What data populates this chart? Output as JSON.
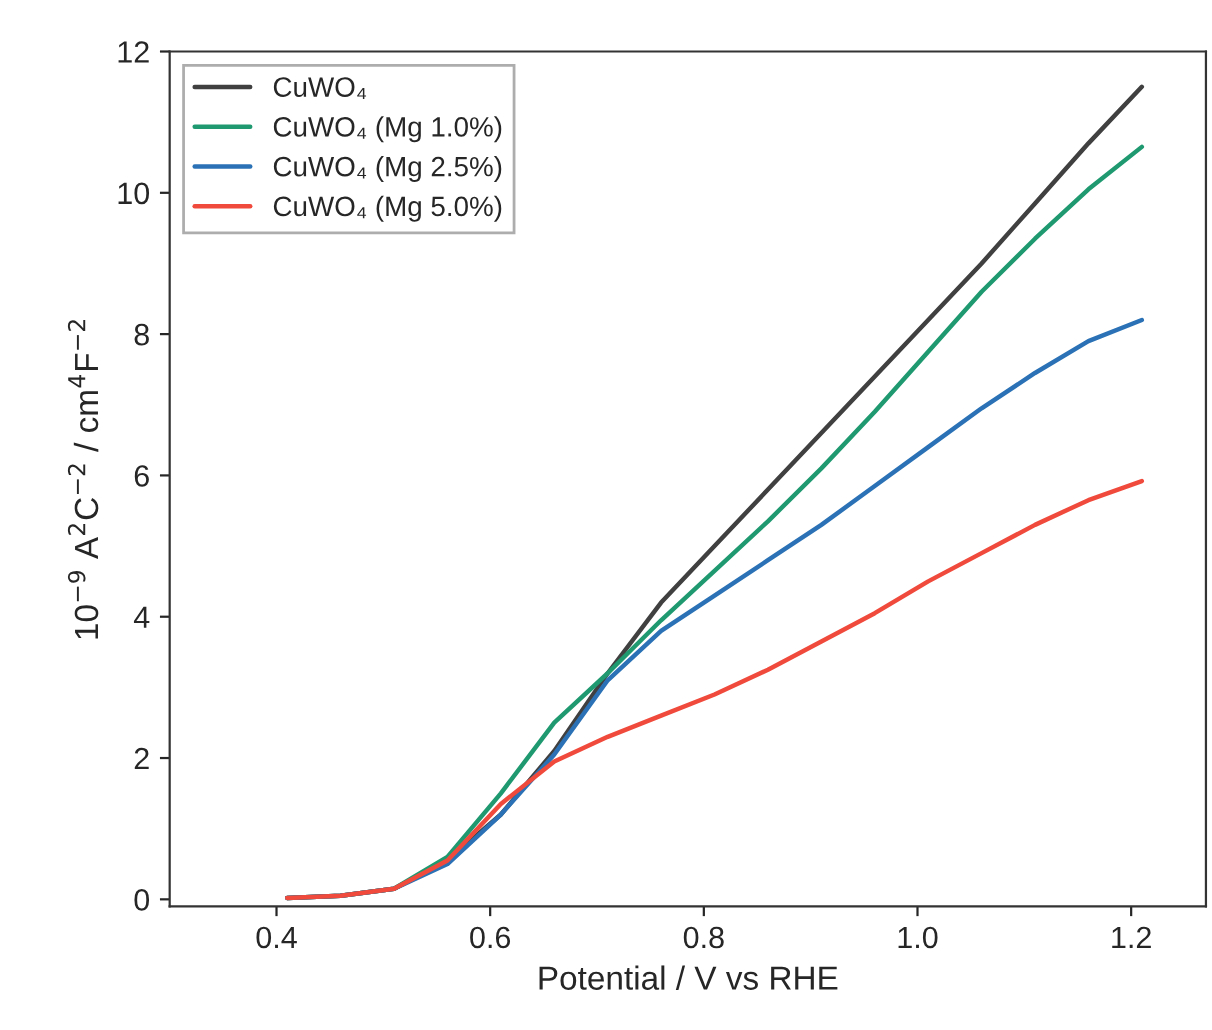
{
  "chart_data": {
    "type": "line",
    "xlabel": "Potential / V vs RHE",
    "ylabel": "10$^{−9}$ A$^{2}$C$^{−2}$ / cm$^{4}$F$^{−2}$",
    "x": [
      0.41,
      0.46,
      0.51,
      0.56,
      0.61,
      0.66,
      0.71,
      0.76,
      0.81,
      0.86,
      0.91,
      0.96,
      1.01,
      1.06,
      1.11,
      1.16,
      1.21
    ],
    "series": [
      {
        "name": "CuWO₄",
        "color": "#404040",
        "values": [
          0.02,
          0.05,
          0.15,
          0.55,
          1.2,
          2.1,
          3.2,
          4.2,
          5.0,
          5.8,
          6.6,
          7.4,
          8.2,
          9.0,
          9.85,
          10.7,
          11.5
        ]
      },
      {
        "name": "CuWO₄ (Mg 1.0%)",
        "color": "#1f9a70",
        "values": [
          0.02,
          0.05,
          0.15,
          0.6,
          1.5,
          2.5,
          3.2,
          3.95,
          4.65,
          5.35,
          6.1,
          6.9,
          7.75,
          8.6,
          9.35,
          10.05,
          10.65
        ]
      },
      {
        "name": "CuWO₄ (Mg 2.5%)",
        "color": "#2a72b5",
        "values": [
          0.02,
          0.05,
          0.15,
          0.5,
          1.2,
          2.05,
          3.1,
          3.8,
          4.3,
          4.8,
          5.3,
          5.85,
          6.4,
          6.95,
          7.45,
          7.9,
          8.2
        ]
      },
      {
        "name": "CuWO₄ (Mg 5.0%)",
        "color": "#f04a3c",
        "values": [
          0.02,
          0.05,
          0.15,
          0.55,
          1.35,
          1.95,
          2.3,
          2.6,
          2.9,
          3.25,
          3.65,
          4.05,
          4.5,
          4.9,
          5.3,
          5.65,
          5.92
        ]
      }
    ],
    "xlim": [
      0.3,
      1.27
    ],
    "xticks": [
      0.4,
      0.6,
      0.8,
      {
        "value": 1.0,
        "label": "1.0"
      },
      1.2
    ],
    "ylim": [
      -0.1,
      12
    ],
    "yticks": [
      0,
      2,
      4,
      6,
      8,
      10,
      12
    ],
    "legend": "top left",
    "grid": false,
    "line_style": "solid",
    "marker": "none"
  }
}
